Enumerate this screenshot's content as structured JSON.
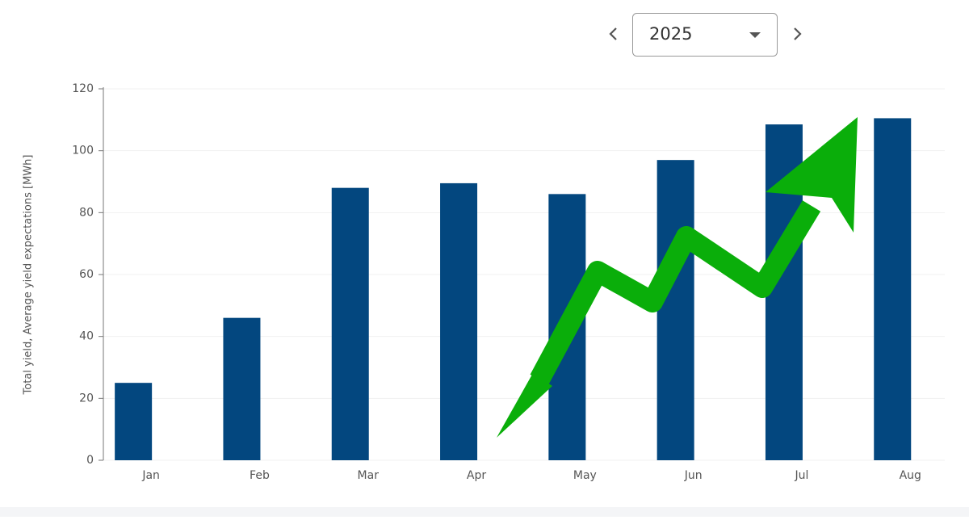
{
  "year_selector": {
    "value": "2025"
  },
  "chart_data": {
    "type": "bar",
    "y_axis_label": "Total yield, Average yield expectations [MWh]",
    "categories": [
      "Jan",
      "Feb",
      "Mar",
      "Apr",
      "May",
      "Jun",
      "Jul",
      "Aug"
    ],
    "values": [
      25,
      46,
      88,
      89.5,
      86,
      97,
      108.5,
      110.5
    ],
    "color": "#03477f",
    "ylim": [
      0,
      120
    ],
    "yticks": [
      0,
      20,
      40,
      60,
      80,
      100,
      120
    ],
    "grid": true
  }
}
